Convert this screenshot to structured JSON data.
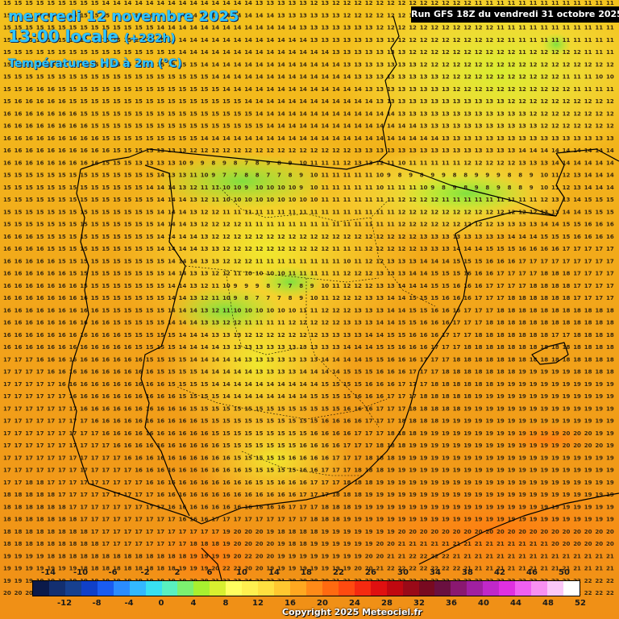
{
  "header": {
    "date": "mercredi 12 novembre 2025",
    "time": "13:00 locale",
    "lead": "(+282h)",
    "parameter": "Températures HD à 2m (°C)",
    "run": "Run GFS 18Z du vendredi 31 octobre 2025"
  },
  "footer": {
    "copyright": "Copyright 2025 Meteociel.fr"
  },
  "legend": {
    "top_labels": [
      "-14",
      "-10",
      "-6",
      "-2",
      "2",
      "6",
      "10",
      "14",
      "18",
      "22",
      "26",
      "30",
      "34",
      "38",
      "42",
      "46",
      "50"
    ],
    "bottom_labels": [
      "-12",
      "-8",
      "-4",
      "0",
      "4",
      "8",
      "12",
      "16",
      "20",
      "24",
      "28",
      "32",
      "36",
      "40",
      "44",
      "48",
      "52"
    ],
    "colors": [
      "#0b1a4a",
      "#132f70",
      "#17408f",
      "#1040c8",
      "#1a5cf0",
      "#2b8cff",
      "#33b8ff",
      "#39e0f0",
      "#59f0c0",
      "#7cf070",
      "#a8f030",
      "#d8f030",
      "#ffff60",
      "#fff050",
      "#ffe040",
      "#ffc830",
      "#ffa820",
      "#ff8a18",
      "#ff6a10",
      "#ff4a10",
      "#f52a10",
      "#e01010",
      "#c00810",
      "#9a0a18",
      "#780a20",
      "#6a1040",
      "#8a1870",
      "#a020a0",
      "#c028c8",
      "#e030e0",
      "#f060f0",
      "#f890f0",
      "#fbc8f8",
      "#ffffff"
    ]
  },
  "map": {
    "grid_label_color": "#3a2a10",
    "rows": [
      "15 15 15 15 15 15 15 15 15 14 14 14 14 14 14 14 14 14 14 14 14 14 14 13 13 13 13 13 12 13 12 12 12 12 12 12 12 12 12 12 12 12 12 11 11 11 11 11 11 11 11 11 11 11 11 11",
      "15 15 15 15 15 15 15 15 15 15 15 15 14 14 14 14 14 14 14 14 14 14 14 14 14 13 13 13 13 13 13 12 12 12 12 12 12 12 12 12 12 12 12 12 11 11 11 11 11 11 11 11 11 11 11 11",
      "15 15 15 15 15 15 15 15 15 15 15 15 15 15 14 14 14 14 14 14 14 14 14 14 14 14 14 13 13 13 13 13 13 13 12 12 12 12 12 12 12 12 12 12 12 11 11 11 11 11 11 11 11 11 11 11",
      "15 15 15 15 15 15 15 15 15 15 15 15 15 15 15 14 14 14 14 14 14 14 14 14 14 14 14 14 13 13 13 13 13 13 13 13 12 12 12 12 12 12 12 12 12 12 11 11 11 11 11 11 11 11 11 11",
      "15 15 15 15 15 15 15 15 15 15 15 15 15 15 15 15 14 14 14 14 14 14 14 14 14 14 14 14 14 14 13 13 13 13 13 13 13 12 12 12 12 12 12 12 12 12 12 11 12 12 12 12 12 11 11 11",
      "15 15 15 15 15 15 15 15 15 15 15 15 15 15 15 15 15 15 14 14 14 14 14 14 14 14 14 14 14 14 14 13 13 13 13 13 13 13 12 12 12 12 12 12 12 12 12 12 12 12 12 12 12 12 12 12",
      "15 15 15 15 15 15 15 15 15 15 15 15 15 15 15 15 15 15 15 14 14 14 14 14 14 14 14 14 14 14 14 14 13 13 13 13 13 13 13 13 12 12 12 12 12 12 12 12 12 12 12 11 11 11 10 10",
      "15 15 16 16 16 15 15 15 15 15 15 15 15 15 15 15 15 15 15 15 14 14 14 14 14 14 14 14 14 14 14 14 14 13 13 13 13 13 13 13 13 12 12 12 12 12 12 12 12 12 12 12 11 11 11 11",
      "15 16 16 16 16 16 15 15 15 15 15 15 15 15 15 15 15 15 15 15 15 15 14 14 14 14 14 14 14 14 14 14 14 14 13 13 13 13 13 13 13 13 13 13 13 13 12 12 12 12 12 12 12 12 12 12",
      "16 16 16 16 16 16 16 15 15 15 15 15 15 15 15 15 15 15 15 15 15 15 15 14 14 14 14 14 14 14 14 14 14 14 14 14 13 13 13 13 13 13 13 13 13 13 13 13 12 12 12 12 12 12 12 12",
      "16 16 16 16 16 16 16 16 15 15 15 15 15 15 15 15 15 15 15 15 15 15 15 15 14 14 14 14 14 14 14 14 14 14 14 14 14 14 13 13 13 13 13 13 13 13 13 13 13 12 12 12 12 12 12 12",
      "16 16 16 16 16 16 16 16 16 15 15 15 15 15 15 15 15 15 14 14 14 14 14 14 14 14 14 14 14 14 14 14 14 14 14 14 14 14 14 14 13 13 13 13 13 13 13 13 13 13 13 13 13 13 13 13",
      "16 16 16 16 16 16 16 16 16 16 15 15 15 15 13 13 13 12 12 12 12 12 12 12 12 12 12 12 12 12 12 12 13 13 13 13 13 13 13 13 13 13 13 13 13 13 13 14 14 14 14 14 14 14 14 14",
      "16 16 16 16 16 16 16 16 16 15 15 15 13 13 13 13 10 9 9 8 9 8 7 8 9 8 9 10 11 11 11 12 13 13 12 11 10 11 11 11 11 11 12 12 12 12 12 13 13 13 14 14 14 14 14 14",
      "15 15 15 15 15 15 15 15 15 15 15 15 15 15 14 13 13 11 10 9 7 7 8 8 7 7 8 9 10 11 11 11 11 11 10 9 8 9 8 9 9 8 8 9 9 9 8 8 9 10 11 12 13 14 14 14",
      "15 15 15 15 15 15 15 15 15 15 15 15 15 14 14 14 13 12 11 11 10 10 9 10 10 10 10 9 10 11 11 11 11 11 10 11 11 11 10 9 8 9 8 9 8 9 8 8 9 10 11 12 13 14 14 14",
      "15 15 15 15 15 15 15 15 15 15 15 15 15 15 14 14 14 13 12 11 10 10 10 10 10 10 10 10 10 11 11 11 11 11 11 11 12 12 12 12 11 11 11 11 11 11 11 11 11 12 13 13 14 15 15 15",
      "15 15 15 15 15 15 15 15 15 15 15 15 15 15 14 14 14 13 12 12 11 11 11 11 11 11 11 11 11 11 11 11 11 11 11 11 12 12 12 12 12 12 12 12 12 12 12 12 12 13 13 14 14 15 15 15",
      "15 15 15 15 15 15 15 15 15 15 15 15 15 15 14 14 14 13 12 12 12 12 11 11 11 11 11 11 11 11 11 11 11 11 11 11 12 12 12 12 12 12 12 12 12 13 13 13 13 14 14 15 15 16 16 16",
      "16 16 16 15 15 15 15 15 15 15 15 15 15 15 14 14 14 14 13 12 12 12 12 12 12 12 12 12 12 12 12 12 12 12 12 12 12 12 13 13 13 13 13 13 13 13 14 14 14 15 15 15 16 16 16 16",
      "16 16 16 16 15 15 15 15 15 15 15 15 15 15 14 14 14 14 13 13 12 12 12 12 12 12 12 12 12 12 11 11 11 12 12 12 12 12 13 13 13 14 14 14 15 15 15 16 16 16 16 17 17 17 17 17",
      "16 16 16 16 16 15 15 15 15 15 15 15 15 15 15 14 14 14 13 13 12 12 12 11 11 11 11 11 11 11 11 10 11 12 12 13 13 13 14 14 14 15 15 15 16 16 16 17 17 17 17 17 17 17 17 17",
      "16 16 16 16 16 16 15 15 15 15 15 15 15 15 15 14 14 13 13 12 12 11 10 10 10 10 11 11 11 11 11 12 12 12 13 13 13 14 14 15 15 15 16 16 16 17 17 17 17 18 18 18 17 17 17 17",
      "16 16 16 16 16 16 16 15 15 15 15 15 15 15 15 14 14 13 12 11 10 9 9 9 8 7 7 8 9 10 11 12 12 12 13 13 14 14 14 15 15 16 16 16 17 17 17 17 18 18 18 18 17 17 17 17",
      "16 16 16 16 16 16 16 16 15 15 15 15 15 15 15 14 14 13 12 11 10 9 8 7 7 7 8 9 10 11 12 12 12 13 13 14 14 15 15 15 16 16 16 17 17 17 18 18 18 18 18 18 17 17 17 17",
      "16 16 16 16 16 16 16 16 16 15 15 15 15 15 15 14 14 14 13 12 11 10 10 10 10 10 10 11 11 12 12 12 13 13 13 14 14 15 15 16 16 16 17 17 17 18 18 18 18 18 18 18 18 18 18 18",
      "16 16 16 16 16 16 16 16 16 16 15 15 15 15 15 14 14 14 13 13 12 12 11 11 11 11 12 12 12 12 12 13 13 13 14 14 15 15 16 16 16 17 17 17 18 18 18 18 18 18 18 18 18 18 18 18",
      "16 16 16 16 16 16 16 16 16 16 16 15 15 15 15 15 14 14 14 13 13 13 12 12 12 12 12 12 12 13 13 13 13 14 14 15 15 16 16 16 17 17 17 18 18 18 18 18 18 18 17 17 18 18 18 18",
      "16 16 16 16 16 16 16 16 16 16 16 16 15 15 15 15 14 14 14 14 13 13 13 13 13 13 13 13 13 13 13 14 14 14 15 15 16 16 16 17 17 17 18 18 18 18 18 18 18 18 18 18 18 18 18 18",
      "17 17 17 16 16 16 16 16 16 16 16 16 16 15 15 15 15 14 14 14 14 14 13 13 13 13 13 13 13 14 14 14 14 15 15 16 16 16 17 17 17 18 18 18 18 18 18 18 18 18 18 18 18 18 18 18",
      "17 17 17 17 16 16 16 16 16 16 16 16 16 16 15 15 15 15 14 14 14 14 14 13 13 13 13 14 14 14 14 15 15 15 16 16 16 17 17 17 18 18 18 18 18 18 18 19 19 19 19 19 18 18 18 18",
      "17 17 17 17 17 16 16 16 16 16 16 16 16 16 16 15 15 15 15 14 14 14 14 14 14 14 14 14 14 15 15 15 15 16 16 16 17 17 17 18 18 18 18 18 18 19 19 19 19 19 19 19 19 19 19 19",
      "17 17 17 17 17 17 16 16 16 16 16 16 16 16 16 16 15 15 15 15 14 14 14 14 14 14 14 14 15 15 15 15 16 16 16 17 17 17 18 18 18 18 18 19 19 19 19 19 19 19 19 19 19 19 19 19",
      "17 17 17 17 17 17 17 16 16 16 16 16 16 16 16 16 16 15 15 15 15 15 15 15 15 15 15 15 15 15 15 16 16 16 17 17 17 18 18 18 18 18 19 19 19 19 19 19 19 19 19 19 19 19 19 19",
      "17 17 17 17 17 17 17 17 16 16 16 16 16 16 16 16 16 16 15 15 15 15 15 15 15 15 15 15 15 16 16 16 16 17 17 17 18 18 18 18 19 19 19 19 19 19 19 19 19 19 19 19 19 19 19 19",
      "17 17 17 17 17 17 17 17 17 16 16 16 16 16 16 16 16 16 16 15 15 15 15 15 15 15 15 15 16 16 16 16 17 17 17 18 18 18 19 19 19 19 19 19 19 19 19 19 19 19 19 20 20 20 19 19",
      "17 17 17 17 17 17 17 17 17 17 16 16 16 16 16 16 16 16 16 16 15 15 15 15 15 15 15 16 16 16 16 17 17 17 18 18 18 19 19 19 19 19 19 19 19 19 19 19 19 19 19 20 20 20 20 19",
      "17 17 17 17 17 17 17 17 17 17 17 16 16 16 16 16 16 16 16 16 16 15 15 15 15 15 16 16 16 16 17 17 17 18 18 18 19 19 19 19 19 19 19 19 19 19 19 19 19 19 19 19 19 19 19 19",
      "17 17 17 17 17 17 17 17 17 17 17 17 16 16 16 16 16 16 16 16 16 16 15 15 15 15 15 16 16 17 17 17 18 18 18 19 19 19 19 19 19 19 19 19 19 19 19 19 19 19 19 19 19 19 19 19",
      "17 17 18 18 17 17 17 17 17 17 17 17 17 16 16 16 16 16 16 16 16 16 16 15 15 16 16 16 17 17 17 18 18 18 19 19 19 19 19 19 19 19 19 19 19 19 19 19 19 19 19 19 19 19 19 19",
      "18 18 18 18 18 17 17 17 17 17 17 17 17 17 16 16 16 16 16 16 16 16 16 16 16 16 16 17 17 17 18 18 18 19 19 19 19 19 19 19 19 19 19 19 19 19 19 19 19 19 19 19 19 19 19 19",
      "18 18 18 18 18 18 17 17 17 17 17 17 17 17 17 16 16 16 16 16 16 16 16 16 16 16 17 17 17 18 18 18 19 19 19 19 19 19 19 19 19 19 19 19 19 19 19 19 19 19 19 19 19 19 19 19",
      "18 18 18 18 18 18 18 17 17 17 17 17 17 17 17 17 16 16 16 17 17 17 17 17 17 17 17 17 18 18 18 19 19 19 19 19 19 19 19 19 19 19 19 19 19 19 19 19 19 19 19 19 19 19 19 19",
      "18 18 18 18 18 18 18 18 17 17 17 17 17 17 17 17 17 17 17 17 19 20 20 20 19 18 18 18 18 19 19 19 19 19 19 19 20 20 20 20 20 20 20 20 20 20 20 20 20 20 20 20 20 20 20 20",
      "18 18 18 18 18 18 18 18 18 17 17 17 17 17 17 17 17 18 18 18 19 20 20 20 20 19 18 18 19 19 19 19 19 19 20 20 21 21 21 21 21 21 21 21 21 21 21 21 21 21 20 20 20 20 20 20",
      "19 19 19 19 18 18 18 18 18 18 18 18 18 18 18 18 18 19 19 19 19 20 22 20 20 19 19 19 19 19 19 19 19 20 20 21 21 22 22 22 22 21 21 21 21 21 21 21 21 21 21 21 21 21 21 21",
      "19 19 19 19 19 19 19 18 18 18 18 18 18 18 18 18 19 19 19 20 22 23 20 20 19 19 19 19 19 19 19 19 20 20 21 22 22 22 22 22 22 22 21 21 21 21 21 21 21 21 21 21 21 21 21 21",
      "19 19 19 19 19 19 19 19 19 19 19 19 19 19 19 19 19 20 20 21 22 23 24 23 22 21 20 20 20 20 21 21 22 22 22 22 22 22 22 22 22 22 22 22 22 22 22 22 22 22 22 22 22 22 22 22",
      "20 20 20 20 20 20 20 20 20 20 20 20 20 20 20 20 20 20 21 22 23 23 23 22 22 22 22 22 22 22 22 22 22 22 22 22 22 22 22 22 22 22 22 22 22 22 22 22 22 22 22 22 22 22 22 22"
    ]
  }
}
